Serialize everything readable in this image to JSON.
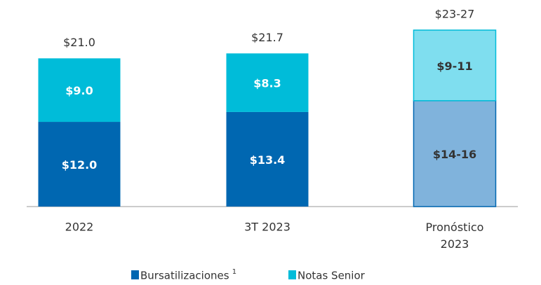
{
  "chart_data": {
    "type": "stacked_bar",
    "categories": [
      "2022",
      "3T 2023",
      "Pronóstico 2023"
    ],
    "series": [
      {
        "name": "Bursatilizaciones",
        "note": "1",
        "color": "#0067b1",
        "point_colors": [
          "#0067b1",
          "#0067b1",
          "#80b3dc"
        ],
        "values": [
          12.0,
          13.4,
          15
        ],
        "value_labels": [
          "$12.0",
          "$13.4",
          "$14-16"
        ]
      },
      {
        "name": "Notas Senior",
        "color": "#00bcd9",
        "point_colors": [
          "#00bcd9",
          "#00bcd9",
          "#7fdeef"
        ],
        "values": [
          9.0,
          8.3,
          10
        ],
        "value_labels": [
          "$9.0",
          "$8.3",
          "$9-11"
        ]
      }
    ],
    "totals": [
      21.0,
      21.7,
      25
    ],
    "total_labels": [
      "$21.0",
      "$21.7",
      "$23-27"
    ]
  }
}
